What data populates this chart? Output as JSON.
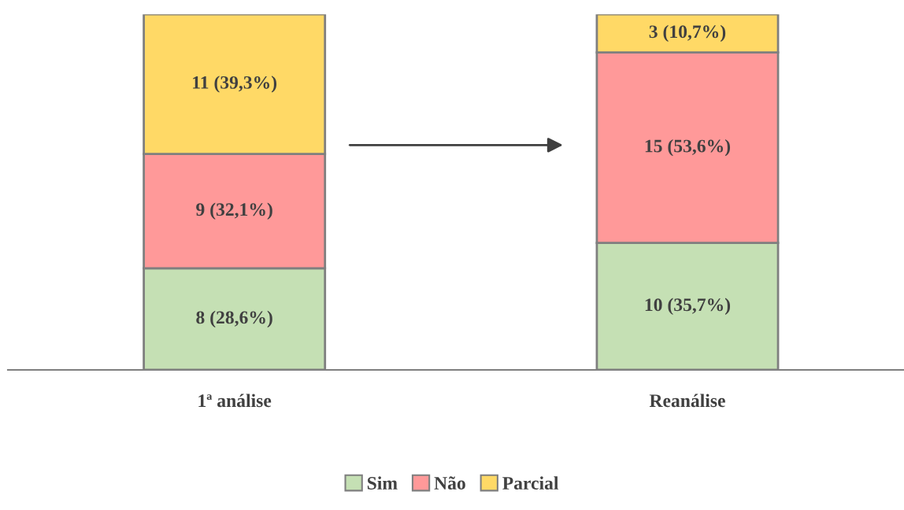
{
  "chart_data": {
    "type": "bar",
    "stacked": true,
    "categories": [
      "1ª análise",
      "Reanálise"
    ],
    "series": [
      {
        "name": "Sim",
        "color": "#c5e0b4",
        "values": [
          8,
          10
        ],
        "value_labels": [
          "8 (28,6%)",
          "10 (35,7%)"
        ]
      },
      {
        "name": "Não",
        "color": "#ff9999",
        "values": [
          9,
          15
        ],
        "value_labels": [
          "9 (32,1%)",
          "15 (53,6%)"
        ]
      },
      {
        "name": "Parcial",
        "color": "#ffd966",
        "values": [
          11,
          3
        ],
        "value_labels": [
          "11 (39,3%)",
          "3 (10,7%)"
        ]
      }
    ],
    "ylim": [
      0,
      28
    ],
    "tick_labels": "x",
    "grid": false,
    "legend": "bottom"
  }
}
